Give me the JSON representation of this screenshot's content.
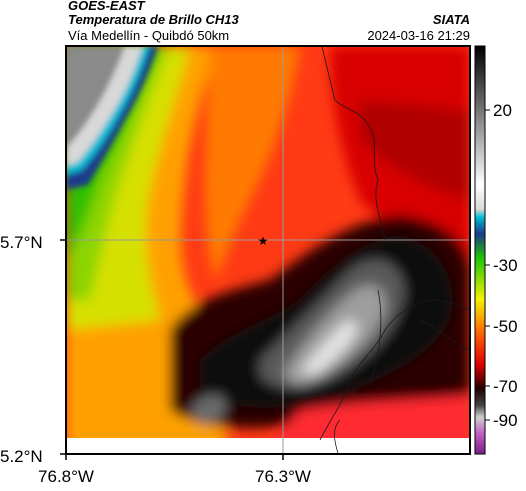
{
  "header": {
    "satellite": "GOES-EAST",
    "product": "Temperatura de Brillo CH13",
    "organization": "SIATA",
    "region": "Vía Medellín - Quibdó 50km",
    "datetime": "2024-03-16 21:29"
  },
  "axes": {
    "lat_labels": [
      "5.7°N",
      "5.2°N"
    ],
    "lon_labels": [
      "76.8°W",
      "76.3°W"
    ]
  },
  "colorbar": {
    "tick_labels": [
      "20",
      "-30",
      "-50",
      "-70",
      "-90"
    ]
  },
  "marker": {
    "symbol": "★",
    "label": "station-star"
  },
  "colors": {
    "frame": "#000000",
    "grid": "#9a9a9a",
    "label_gray": "#777777"
  }
}
